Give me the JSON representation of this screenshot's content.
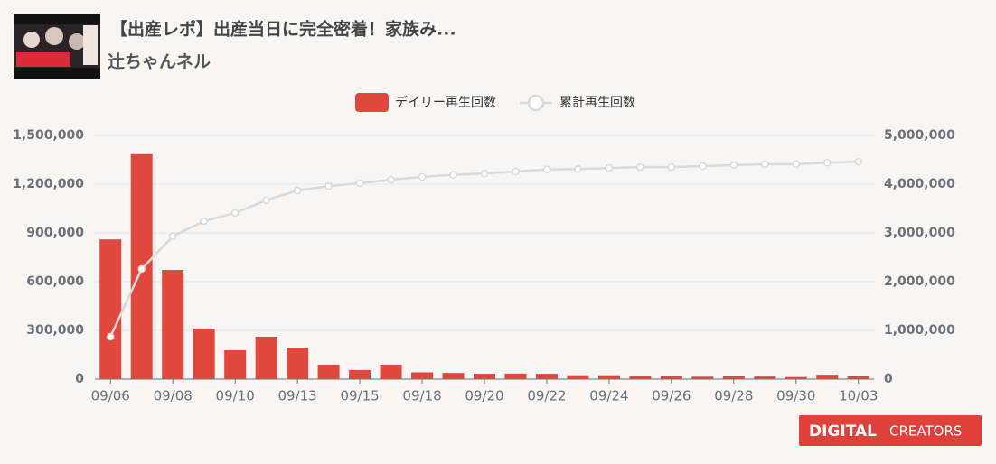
{
  "video": {
    "title": "【出産レポ】出産当日に完全密着！家族み...",
    "channel": "辻ちゃんネル"
  },
  "chart_data": {
    "type": "bar",
    "categories": [
      "09/06",
      null,
      "09/08",
      null,
      "09/10",
      null,
      "09/13",
      null,
      "09/15",
      null,
      "09/18",
      null,
      "09/20",
      null,
      "09/22",
      null,
      "09/24",
      null,
      "09/26",
      null,
      "09/28",
      null,
      "09/30",
      null,
      "10/03"
    ],
    "series": [
      {
        "name": "デイリー再生回数",
        "type": "bar",
        "color": "#e0483e",
        "axis": "y",
        "values": [
          860000,
          1385000,
          672000,
          311000,
          178000,
          261000,
          194000,
          89000,
          56000,
          89000,
          42000,
          38000,
          33000,
          34000,
          33000,
          24000,
          24000,
          19000,
          18000,
          15000,
          17000,
          16000,
          13000,
          27000,
          17000
        ]
      },
      {
        "name": "累計再生回数",
        "type": "line",
        "color": "#d9d9d9",
        "axis": "y2",
        "values": [
          870000,
          2260000,
          2930000,
          3240000,
          3410000,
          3670000,
          3870000,
          3960000,
          4020000,
          4090000,
          4150000,
          4190000,
          4220000,
          4260000,
          4300000,
          4310000,
          4330000,
          4350000,
          4350000,
          4370000,
          4390000,
          4410000,
          4410000,
          4440000,
          4460000
        ]
      }
    ],
    "ylim": [
      0,
      1500000
    ],
    "yticks": [
      0,
      {
        "value": 300000,
        "label": "300,000"
      },
      {
        "value": 600000,
        "label": "600,000"
      },
      {
        "value": 900000,
        "label": "900,000"
      },
      {
        "value": 1200000,
        "label": "1,200,000"
      },
      {
        "value": 1500000,
        "label": "1,500,000"
      }
    ],
    "y2lim": [
      0,
      5000000
    ],
    "y2ticks": [
      0,
      {
        "value": 1000000,
        "label": "1,000,000"
      },
      {
        "value": 2000000,
        "label": "2,000,000"
      },
      {
        "value": 3000000,
        "label": "3,000,000"
      },
      {
        "value": 4000000,
        "label": "4,000,000"
      },
      {
        "value": 5000000,
        "label": "5,000,000"
      }
    ],
    "grid": true,
    "legend": "top"
  },
  "logo": {
    "mark": "DIGITAL",
    "text": "CREATORS"
  }
}
